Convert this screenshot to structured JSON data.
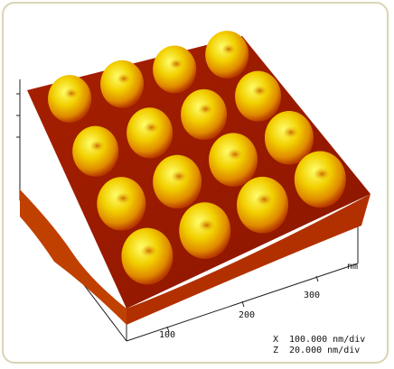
{
  "axis": {
    "unit": "nm",
    "ticks": [
      "300",
      "200",
      "100"
    ]
  },
  "scale": [
    {
      "axis": "X",
      "value": "100.000 nm/div"
    },
    {
      "axis": "Z",
      "value": "20.000 nm/div"
    }
  ]
}
